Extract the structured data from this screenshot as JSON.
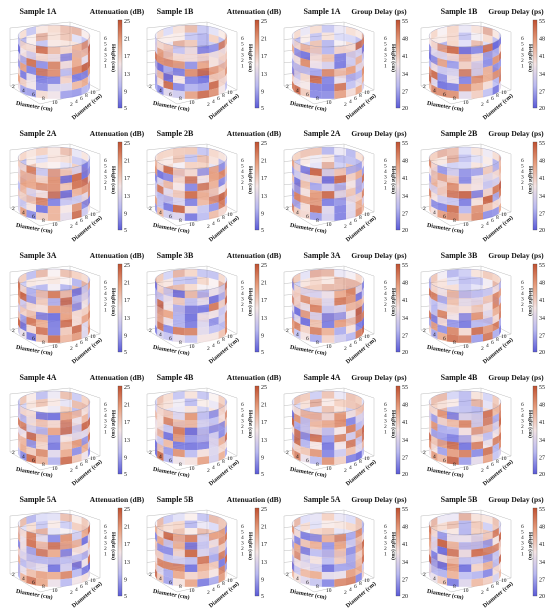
{
  "figure": {
    "colorbars": {
      "attenuation": {
        "label": "Attenuation (dB)",
        "ticks": [
          "25",
          "21",
          "17",
          "13",
          "9",
          "5"
        ],
        "colors": [
          "#5a5ad8",
          "#b8b8f0",
          "#f4e4e4",
          "#e8a080",
          "#c05030"
        ]
      },
      "group_delay": {
        "label": "Group Delay (ps)",
        "ticks": [
          "55",
          "48",
          "41",
          "34",
          "27",
          "20"
        ],
        "colors": [
          "#5a5ad8",
          "#b8b8f0",
          "#f4e4e4",
          "#e8a080",
          "#c05030"
        ]
      }
    },
    "axes": {
      "diameter_label": "Diameter (cm)",
      "height_label": "Height (cm)",
      "diameter_ticks": [
        "2",
        "4",
        "6",
        "8",
        "10"
      ],
      "diameter_depth_ticks": [
        "2",
        "4",
        "6",
        "8",
        "10"
      ],
      "height_ticks": [
        "6",
        "5",
        "4",
        "3",
        "2",
        "1"
      ]
    }
  },
  "chart_data": [
    {
      "type": "heatmap",
      "title": "Sample 1A",
      "metric": "Attenuation (dB)",
      "colorbar_range": [
        5,
        25
      ],
      "grid": true,
      "xlabel": "Diameter (cm)",
      "ylabel": "Diameter (cm)",
      "zlabel": "Height (cm)"
    },
    {
      "type": "heatmap",
      "title": "Sample 1B",
      "metric": "Attenuation (dB)",
      "colorbar_range": [
        5,
        25
      ],
      "grid": true,
      "xlabel": "Diameter (cm)",
      "ylabel": "Diameter (cm)",
      "zlabel": "Height (cm)"
    },
    {
      "type": "heatmap",
      "title": "Sample 1A",
      "metric": "Group Delay (ps)",
      "colorbar_range": [
        20,
        55
      ],
      "grid": true,
      "xlabel": "Diameter (cm)",
      "ylabel": "Diameter (cm)",
      "zlabel": "Height (cm)"
    },
    {
      "type": "heatmap",
      "title": "Sample 1B",
      "metric": "Group Delay (ps)",
      "colorbar_range": [
        20,
        55
      ],
      "grid": true,
      "xlabel": "Diameter (cm)",
      "ylabel": "Diameter (cm)",
      "zlabel": "Height (cm)"
    },
    {
      "type": "heatmap",
      "title": "Sample 2A",
      "metric": "Attenuation (dB)",
      "colorbar_range": [
        5,
        25
      ],
      "grid": true,
      "xlabel": "Diameter (cm)",
      "ylabel": "Diameter (cm)",
      "zlabel": "Height (cm)"
    },
    {
      "type": "heatmap",
      "title": "Sample 2B",
      "metric": "Attenuation (dB)",
      "colorbar_range": [
        5,
        25
      ],
      "grid": true,
      "xlabel": "Diameter (cm)",
      "ylabel": "Diameter (cm)",
      "zlabel": "Height (cm)"
    },
    {
      "type": "heatmap",
      "title": "Sample 2A",
      "metric": "Group Delay (ps)",
      "colorbar_range": [
        20,
        55
      ],
      "grid": true,
      "xlabel": "Diameter (cm)",
      "ylabel": "Diameter (cm)",
      "zlabel": "Height (cm)"
    },
    {
      "type": "heatmap",
      "title": "Sample 2B",
      "metric": "Group Delay (ps)",
      "colorbar_range": [
        20,
        55
      ],
      "grid": true,
      "xlabel": "Diameter (cm)",
      "ylabel": "Diameter (cm)",
      "zlabel": "Height (cm)"
    },
    {
      "type": "heatmap",
      "title": "Sample 3A",
      "metric": "Attenuation (dB)",
      "colorbar_range": [
        5,
        25
      ],
      "grid": true,
      "xlabel": "Diameter (cm)",
      "ylabel": "Diameter (cm)",
      "zlabel": "Height (cm)"
    },
    {
      "type": "heatmap",
      "title": "Sample 3B",
      "metric": "Attenuation (dB)",
      "colorbar_range": [
        5,
        25
      ],
      "grid": true,
      "xlabel": "Diameter (cm)",
      "ylabel": "Diameter (cm)",
      "zlabel": "Height (cm)"
    },
    {
      "type": "heatmap",
      "title": "Sample 3A",
      "metric": "Group Delay (ps)",
      "colorbar_range": [
        20,
        55
      ],
      "grid": true,
      "xlabel": "Diameter (cm)",
      "ylabel": "Diameter (cm)",
      "zlabel": "Height (cm)"
    },
    {
      "type": "heatmap",
      "title": "Sample 3B",
      "metric": "Group Delay (ps)",
      "colorbar_range": [
        20,
        55
      ],
      "grid": true,
      "xlabel": "Diameter (cm)",
      "ylabel": "Diameter (cm)",
      "zlabel": "Height (cm)"
    },
    {
      "type": "heatmap",
      "title": "Sample 4A",
      "metric": "Attenuation (dB)",
      "colorbar_range": [
        5,
        25
      ],
      "grid": true,
      "xlabel": "Diameter (cm)",
      "ylabel": "Diameter (cm)",
      "zlabel": "Height (cm)"
    },
    {
      "type": "heatmap",
      "title": "Sample 4B",
      "metric": "Attenuation (dB)",
      "colorbar_range": [
        5,
        25
      ],
      "grid": true,
      "xlabel": "Diameter (cm)",
      "ylabel": "Diameter (cm)",
      "zlabel": "Height (cm)"
    },
    {
      "type": "heatmap",
      "title": "Sample 4A",
      "metric": "Group Delay (ps)",
      "colorbar_range": [
        20,
        55
      ],
      "grid": true,
      "xlabel": "Diameter (cm)",
      "ylabel": "Diameter (cm)",
      "zlabel": "Height (cm)"
    },
    {
      "type": "heatmap",
      "title": "Sample 4B",
      "metric": "Group Delay (ps)",
      "colorbar_range": [
        20,
        55
      ],
      "grid": true,
      "xlabel": "Diameter (cm)",
      "ylabel": "Diameter (cm)",
      "zlabel": "Height (cm)"
    },
    {
      "type": "heatmap",
      "title": "Sample 5A",
      "metric": "Attenuation (dB)",
      "colorbar_range": [
        5,
        25
      ],
      "grid": true,
      "xlabel": "Diameter (cm)",
      "ylabel": "Diameter (cm)",
      "zlabel": "Height (cm)"
    },
    {
      "type": "heatmap",
      "title": "Sample 5B",
      "metric": "Attenuation (dB)",
      "colorbar_range": [
        5,
        25
      ],
      "grid": true,
      "xlabel": "Diameter (cm)",
      "ylabel": "Diameter (cm)",
      "zlabel": "Height (cm)"
    },
    {
      "type": "heatmap",
      "title": "Sample 5A",
      "metric": "Group Delay (ps)",
      "colorbar_range": [
        20,
        55
      ],
      "grid": true,
      "xlabel": "Diameter (cm)",
      "ylabel": "Diameter (cm)",
      "zlabel": "Height (cm)"
    },
    {
      "type": "heatmap",
      "title": "Sample 5B",
      "metric": "Group Delay (ps)",
      "colorbar_range": [
        20,
        55
      ],
      "grid": true,
      "xlabel": "Diameter (cm)",
      "ylabel": "Diameter (cm)",
      "zlabel": "Height (cm)"
    }
  ]
}
